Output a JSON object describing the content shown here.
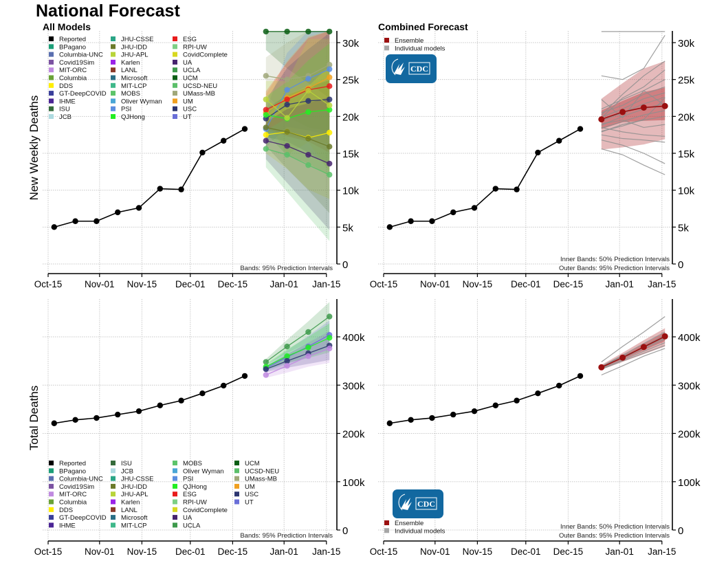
{
  "title": "National Forecast",
  "panels": {
    "all_models_label": "All Models",
    "combined_label": "Combined Forecast",
    "note_all": "Bands: 95% Prediction Intervals",
    "note_inner": "Inner Bands: 50% Prediction Intervals",
    "note_outer": "Outer Bands: 95% Prediction Intervals",
    "cdc_logo_text": "CDC"
  },
  "legend_all_models": [
    {
      "name": "Reported",
      "color": "#000000"
    },
    {
      "name": "BPagano",
      "color": "#1b9e77"
    },
    {
      "name": "Columbia-UNC",
      "color": "#5a6fb0"
    },
    {
      "name": "Covid19Sim",
      "color": "#7b52a1"
    },
    {
      "name": "MIT-ORC",
      "color": "#c08ae0"
    },
    {
      "name": "Columbia",
      "color": "#6aa236"
    },
    {
      "name": "DDS",
      "color": "#ffee00"
    },
    {
      "name": "GT-DeepCOVID",
      "color": "#3a3f9a"
    },
    {
      "name": "IHME",
      "color": "#4b2595"
    },
    {
      "name": "ISU",
      "color": "#356b3b"
    },
    {
      "name": "JCB",
      "color": "#aedbe0"
    },
    {
      "name": "JHU-CSSE",
      "color": "#2aa586"
    },
    {
      "name": "JHU-IDD",
      "color": "#6b7a2a"
    },
    {
      "name": "JHU-APL",
      "color": "#b8d43a"
    },
    {
      "name": "Karlen",
      "color": "#9b22e8"
    },
    {
      "name": "LANL",
      "color": "#8b3a2a"
    },
    {
      "name": "Microsoft",
      "color": "#2a6f86"
    },
    {
      "name": "MIT-LCP",
      "color": "#3fb88a"
    },
    {
      "name": "MOBS",
      "color": "#5cc46a"
    },
    {
      "name": "Oliver Wyman",
      "color": "#4aa6d6"
    },
    {
      "name": "PSI",
      "color": "#5b8ee0"
    },
    {
      "name": "QJHong",
      "color": "#22ee22"
    },
    {
      "name": "ESG",
      "color": "#e81c1c"
    },
    {
      "name": "RPI-UW",
      "color": "#7dcf85"
    },
    {
      "name": "CovidComplete",
      "color": "#d8d820"
    },
    {
      "name": "UA",
      "color": "#46246e"
    },
    {
      "name": "UCLA",
      "color": "#3e9a4c"
    },
    {
      "name": "UCM",
      "color": "#0a5e14"
    },
    {
      "name": "UCSD-NEU",
      "color": "#5bbf6a"
    },
    {
      "name": "UMass-MB",
      "color": "#a0a87a"
    },
    {
      "name": "UM",
      "color": "#f0a020"
    },
    {
      "name": "USC",
      "color": "#2c3570"
    },
    {
      "name": "UT",
      "color": "#6a6fd8"
    }
  ],
  "legend_combined": [
    {
      "name": "Ensemble",
      "color": "#9b1010"
    },
    {
      "name": "Individual models",
      "color": "#a6a6a6"
    }
  ],
  "chart_data": [
    {
      "id": "weekly-all-models",
      "type": "line",
      "title": "All Models",
      "ylabel": "New Weekly Deaths",
      "xlabel": "",
      "x_ticks": [
        "Oct-15",
        "Nov-01",
        "Nov-15",
        "Dec-01",
        "Dec-15",
        "Jan-01",
        "Jan-15"
      ],
      "y_ticks": [
        "0",
        "5k",
        "10k",
        "15k",
        "20k",
        "25k",
        "30k"
      ],
      "ylim": [
        0,
        31500
      ],
      "grid": true,
      "reported": {
        "dates": [
          "Oct-17",
          "Oct-24",
          "Oct-31",
          "Nov-07",
          "Nov-14",
          "Nov-21",
          "Nov-28",
          "Dec-05",
          "Dec-12",
          "Dec-19"
        ],
        "values": [
          5000,
          5800,
          5800,
          7000,
          7600,
          10200,
          10100,
          15100,
          16700,
          18300
        ]
      },
      "forecast_dates": [
        "Dec-26",
        "Jan-02",
        "Jan-09",
        "Jan-16"
      ],
      "models": [
        {
          "name": "UCM",
          "values": [
            31500,
            31500,
            31500,
            31500
          ]
        },
        {
          "name": "UMass-MB",
          "values": [
            25500,
            25000,
            25500,
            27000
          ]
        },
        {
          "name": "PSI",
          "values": [
            18300,
            23600,
            25100,
            26400
          ]
        },
        {
          "name": "UM",
          "values": [
            20500,
            22500,
            23800,
            25300
          ]
        },
        {
          "name": "ESG",
          "values": [
            20900,
            22300,
            23600,
            24100
          ]
        },
        {
          "name": "USC",
          "values": [
            19700,
            21600,
            22100,
            22300
          ]
        },
        {
          "name": "QJHong",
          "values": [
            20200,
            19700,
            20600,
            20900
          ]
        },
        {
          "name": "JHU-APL",
          "values": [
            22300,
            19800,
            23500,
            21500
          ]
        },
        {
          "name": "DDS",
          "values": [
            17500,
            17900,
            17100,
            17800
          ]
        },
        {
          "name": "JHU-IDD",
          "values": [
            18500,
            17900,
            17000,
            15900
          ]
        },
        {
          "name": "UA",
          "values": [
            16700,
            16000,
            14800,
            13600
          ]
        },
        {
          "name": "UCSD-NEU",
          "values": [
            15600,
            14800,
            13400,
            12100
          ]
        }
      ],
      "band_note": "Bands: 95% Prediction Intervals"
    },
    {
      "id": "weekly-combined",
      "type": "line",
      "title": "Combined Forecast",
      "ylabel": "",
      "x_ticks": [
        "Oct-15",
        "Nov-01",
        "Nov-15",
        "Dec-01",
        "Dec-15",
        "Jan-01",
        "Jan-15"
      ],
      "y_ticks": [
        "0",
        "5k",
        "10k",
        "15k",
        "20k",
        "25k",
        "30k"
      ],
      "ylim": [
        0,
        31500
      ],
      "grid": true,
      "reported": {
        "dates": [
          "Oct-17",
          "Oct-24",
          "Oct-31",
          "Nov-07",
          "Nov-14",
          "Nov-21",
          "Nov-28",
          "Dec-05",
          "Dec-12",
          "Dec-19"
        ],
        "values": [
          5000,
          5800,
          5800,
          7000,
          7600,
          10200,
          10100,
          15100,
          16700,
          18300
        ]
      },
      "forecast_dates": [
        "Dec-26",
        "Jan-02",
        "Jan-09",
        "Jan-16"
      ],
      "ensemble": {
        "values": [
          19600,
          20600,
          21200,
          21400
        ],
        "pi50_low": [
          18300,
          19200,
          19400,
          19500
        ],
        "pi50_high": [
          20800,
          22100,
          23300,
          23900
        ],
        "pi95_low": [
          15500,
          15800,
          16200,
          16900
        ],
        "pi95_high": [
          22400,
          24500,
          26500,
          27500
        ]
      },
      "individual_models": [
        [
          31500,
          31500,
          31500,
          31500
        ],
        [
          25500,
          25000,
          26500,
          31000
        ],
        [
          20200,
          23000,
          25500,
          27500
        ],
        [
          19800,
          22500,
          24000,
          26300
        ],
        [
          21000,
          22300,
          23500,
          25000
        ],
        [
          20500,
          21500,
          23000,
          24000
        ],
        [
          19900,
          21000,
          22400,
          23200
        ],
        [
          19400,
          20500,
          21700,
          22600
        ],
        [
          18800,
          20000,
          21000,
          21800
        ],
        [
          18400,
          19300,
          20200,
          20800
        ],
        [
          17900,
          18900,
          19500,
          20000
        ],
        [
          18500,
          17900,
          17500,
          17300
        ],
        [
          17500,
          17000,
          16800,
          16500
        ],
        [
          16800,
          16100,
          15000,
          13600
        ],
        [
          15600,
          14800,
          13400,
          12100
        ],
        [
          22300,
          19800,
          23500,
          21500
        ],
        [
          19000,
          19500,
          18500,
          18900
        ],
        [
          18000,
          18700,
          19600,
          22500
        ]
      ],
      "band_note_inner": "Inner Bands: 50% Prediction Intervals",
      "band_note_outer": "Outer Bands: 95% Prediction Intervals"
    },
    {
      "id": "total-all-models",
      "type": "line",
      "title": "",
      "ylabel": "Total Deaths",
      "x_ticks": [
        "Oct-15",
        "Nov-01",
        "Nov-15",
        "Dec-01",
        "Dec-15",
        "Jan-01",
        "Jan-15"
      ],
      "y_ticks": [
        "0",
        "100k",
        "200k",
        "300k",
        "400k"
      ],
      "ylim": [
        0,
        480000
      ],
      "grid": true,
      "reported": {
        "dates": [
          "Oct-17",
          "Oct-24",
          "Oct-31",
          "Nov-07",
          "Nov-14",
          "Nov-21",
          "Nov-28",
          "Dec-05",
          "Dec-12",
          "Dec-19"
        ],
        "values": [
          221000,
          228000,
          232000,
          239000,
          246000,
          258000,
          268000,
          283000,
          299000,
          319000
        ]
      },
      "forecast_dates": [
        "Dec-26",
        "Jan-02",
        "Jan-09",
        "Jan-16"
      ],
      "models": [
        {
          "name": "UCLA",
          "values": [
            348000,
            380000,
            410000,
            442000
          ]
        },
        {
          "name": "UT",
          "values": [
            335000,
            358000,
            380000,
            404000
          ]
        },
        {
          "name": "QJHong",
          "values": [
            338000,
            360000,
            378000,
            398000
          ]
        },
        {
          "name": "USC",
          "values": [
            333000,
            350000,
            366000,
            382000
          ]
        },
        {
          "name": "MIT-ORC",
          "values": [
            321000,
            340000,
            360000,
            376000
          ]
        }
      ],
      "band_note": "Bands: 95% Prediction Intervals"
    },
    {
      "id": "total-combined",
      "type": "line",
      "title": "",
      "ylabel": "",
      "x_ticks": [
        "Oct-15",
        "Nov-01",
        "Nov-15",
        "Dec-01",
        "Dec-15",
        "Jan-01",
        "Jan-15"
      ],
      "y_ticks": [
        "0",
        "100k",
        "200k",
        "300k",
        "400k"
      ],
      "ylim": [
        0,
        480000
      ],
      "grid": true,
      "reported": {
        "dates": [
          "Oct-17",
          "Oct-24",
          "Oct-31",
          "Nov-07",
          "Nov-14",
          "Nov-21",
          "Nov-28",
          "Dec-05",
          "Dec-12",
          "Dec-19"
        ],
        "values": [
          221000,
          228000,
          232000,
          239000,
          246000,
          258000,
          268000,
          283000,
          299000,
          319000
        ]
      },
      "forecast_dates": [
        "Dec-26",
        "Jan-02",
        "Jan-09",
        "Jan-16"
      ],
      "ensemble": {
        "values": [
          337000,
          357000,
          379000,
          401000
        ],
        "pi50_low": [
          335000,
          353000,
          372000,
          391000
        ],
        "pi50_high": [
          339000,
          361000,
          385000,
          409000
        ],
        "pi95_low": [
          332000,
          348000,
          364000,
          380000
        ],
        "pi95_high": [
          342000,
          367000,
          393000,
          418000
        ]
      },
      "individual_models": [
        [
          348000,
          380000,
          410000,
          442000
        ],
        [
          333000,
          350000,
          366000,
          382000
        ],
        [
          321000,
          340000,
          360000,
          376000
        ],
        [
          335000,
          358000,
          380000,
          404000
        ],
        [
          338000,
          360000,
          378000,
          398000
        ],
        [
          336000,
          356000,
          375000,
          395000
        ],
        [
          334000,
          352000,
          370000,
          388000
        ],
        [
          339000,
          362000,
          386000,
          410000
        ]
      ],
      "band_note_inner": "Inner Bands: 50% Prediction Intervals",
      "band_note_outer": "Outer Bands: 95% Prediction Intervals"
    }
  ]
}
